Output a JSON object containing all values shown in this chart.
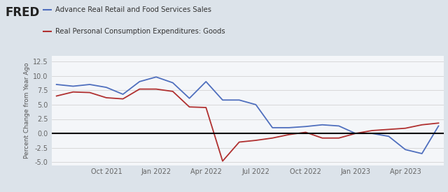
{
  "legend1": "Advance Real Retail and Food Services Sales",
  "legend2": "Real Personal Consumption Expenditures: Goods",
  "ylabel": "Percent Change from Year Ago",
  "background_color": "#dce3ea",
  "plot_background": "#f4f6f9",
  "ylim": [
    -5.5,
    13.5
  ],
  "yticks": [
    -5.0,
    -2.5,
    0.0,
    2.5,
    5.0,
    7.5,
    10.0,
    12.5
  ],
  "color_retail": "#4f6fbe",
  "color_pce": "#b03030",
  "color_zero_line": "#000000",
  "retail_values": [
    8.5,
    8.2,
    8.5,
    8.0,
    6.8,
    9.0,
    9.8,
    8.8,
    6.1,
    9.0,
    5.8,
    5.8,
    5.0,
    1.0,
    1.0,
    1.2,
    1.5,
    1.3,
    0.0,
    0.0,
    -0.5,
    -2.8,
    -3.5,
    1.3
  ],
  "pce_values": [
    6.5,
    7.2,
    7.1,
    6.2,
    6.0,
    7.7,
    7.7,
    7.3,
    4.6,
    4.5,
    -4.8,
    -1.5,
    -1.2,
    -0.8,
    -0.2,
    0.2,
    -0.8,
    -0.8,
    0.0,
    0.5,
    0.7,
    0.9,
    1.5,
    1.8
  ],
  "xtick_labels": [
    "Oct 2021",
    "Jan 2022",
    "Apr 2022",
    "Jul 2022",
    "Oct 2022",
    "Jan 2023",
    "Apr 2023"
  ],
  "xtick_positions": [
    3,
    6,
    9,
    12,
    15,
    18,
    21
  ],
  "n_points": 24
}
